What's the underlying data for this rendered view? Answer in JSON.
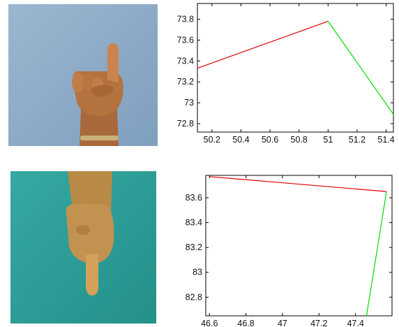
{
  "photos": {
    "top": {
      "subject": "hand gesture: index finger pointing up",
      "background_color": "#8aa9c7"
    },
    "bottom": {
      "subject": "hand gesture: index finger pointing down",
      "background_color": "#2f9f98"
    }
  },
  "colors": {
    "segment_1": "#e00000",
    "segment_2": "#00dd00",
    "axis": "#000000"
  },
  "chart_data": [
    {
      "type": "line",
      "xlim": [
        50.1,
        51.45
      ],
      "ylim": [
        72.72,
        73.95
      ],
      "xticks": [
        50.2,
        50.4,
        50.6,
        50.8,
        51,
        51.2,
        51.4
      ],
      "xtick_labels": [
        "50.2",
        "50.4",
        "50.6",
        "50.8",
        "51",
        "51.2",
        "51.4"
      ],
      "yticks": [
        72.8,
        73,
        73.2,
        73.4,
        73.6,
        73.8
      ],
      "ytick_labels": [
        "72.8",
        "73",
        "73.2",
        "73.4",
        "73.6",
        "73.8"
      ],
      "series": [
        {
          "color": "#e00000",
          "x": [
            50.1,
            51.0
          ],
          "y": [
            73.33,
            73.78
          ]
        },
        {
          "color": "#00dd00",
          "x": [
            51.0,
            51.45
          ],
          "y": [
            73.78,
            72.89
          ]
        }
      ],
      "grid": false
    },
    {
      "type": "line",
      "xlim": [
        46.58,
        47.6
      ],
      "ylim": [
        82.65,
        83.78
      ],
      "xticks": [
        46.6,
        46.8,
        47,
        47.2,
        47.4
      ],
      "xtick_labels": [
        "46.6",
        "46.8",
        "47",
        "47.2",
        "47.4"
      ],
      "yticks": [
        82.8,
        83,
        83.2,
        83.4,
        83.6
      ],
      "ytick_labels": [
        "82.8",
        "83",
        "83.2",
        "83.4",
        "83.6"
      ],
      "series": [
        {
          "color": "#e00000",
          "x": [
            46.6,
            47.57
          ],
          "y": [
            83.77,
            83.65
          ]
        },
        {
          "color": "#00dd00",
          "x": [
            47.57,
            47.46
          ],
          "y": [
            83.65,
            82.65
          ]
        }
      ],
      "grid": false
    }
  ]
}
